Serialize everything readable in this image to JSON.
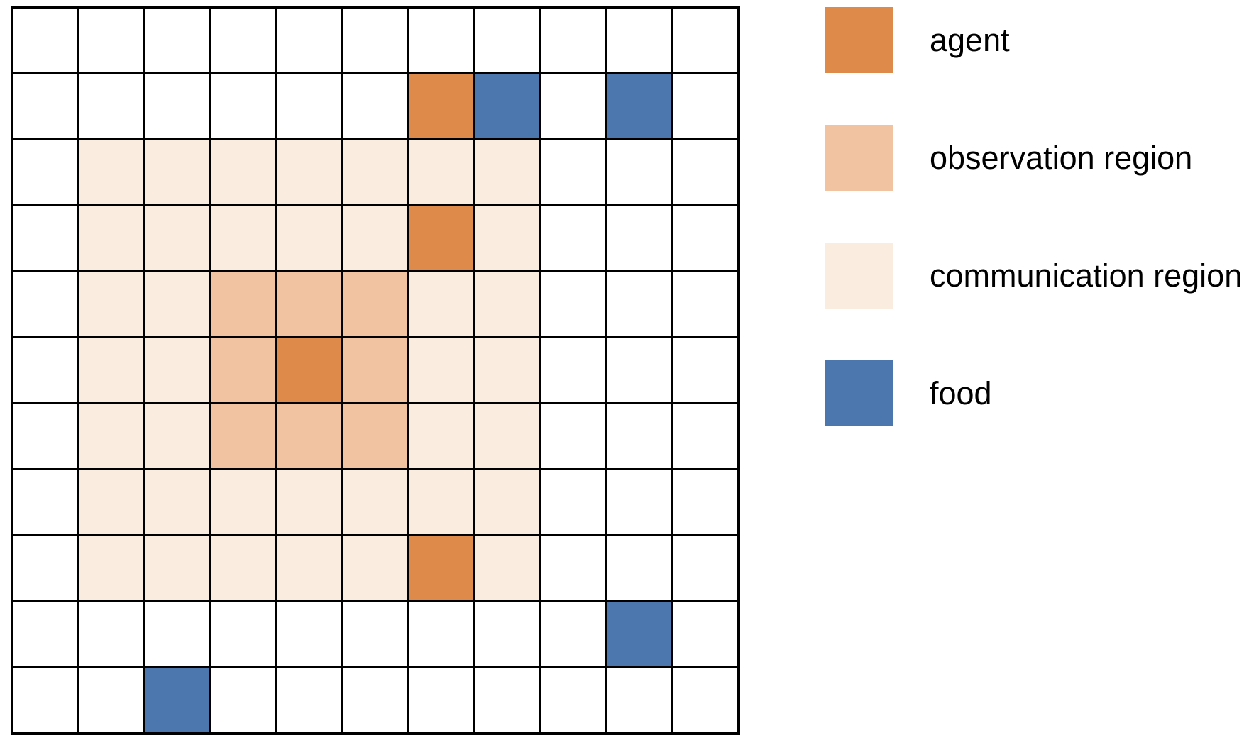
{
  "figure": {
    "title": "gridworld-foraging-diagram",
    "grid": {
      "rows": 11,
      "cols": 11,
      "line_color": "#000000",
      "empty_fill": "#ffffff",
      "agents": [
        [
          1,
          6
        ],
        [
          3,
          6
        ],
        [
          5,
          4
        ],
        [
          8,
          6
        ]
      ],
      "food": [
        [
          1,
          7
        ],
        [
          1,
          9
        ],
        [
          9,
          9
        ],
        [
          10,
          2
        ]
      ],
      "observation_region": {
        "row_range": [
          4,
          6
        ],
        "col_range": [
          3,
          5
        ]
      },
      "communication_region": {
        "row_range": [
          2,
          8
        ],
        "col_range": [
          1,
          7
        ]
      }
    },
    "colors": {
      "agent": "#DE8A4B",
      "observation_region": "#F1C3A1",
      "communication_region": "#FAECDF",
      "food": "#4C76AE"
    },
    "legend": {
      "text_color": "#000000",
      "items": [
        {
          "id": "agent",
          "label": "agent"
        },
        {
          "id": "observation_region",
          "label": "observation region"
        },
        {
          "id": "communication_region",
          "label": "communication region"
        },
        {
          "id": "food",
          "label": "food"
        }
      ]
    }
  }
}
